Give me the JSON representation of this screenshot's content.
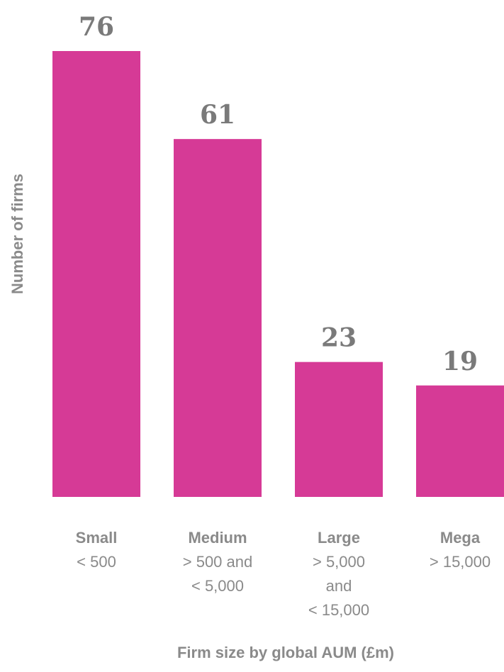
{
  "chart_data": {
    "type": "bar",
    "title": "",
    "xlabel": "Firm size by global AUM (£m)",
    "ylabel": "Number of firms",
    "ylim": [
      0,
      76
    ],
    "grid": false,
    "legend": "none",
    "categories": [
      "Small",
      "Medium",
      "Large",
      "Mega"
    ],
    "category_ranges": [
      [
        "< 500"
      ],
      [
        "> 500 and",
        "< 5,000"
      ],
      [
        "> 5,000",
        "and",
        "< 15,000"
      ],
      [
        "> 15,000"
      ]
    ],
    "values": [
      76,
      61,
      23,
      19
    ],
    "data_labels": [
      "76",
      "61",
      "23",
      "19"
    ],
    "bar_color": "#d63a96"
  }
}
